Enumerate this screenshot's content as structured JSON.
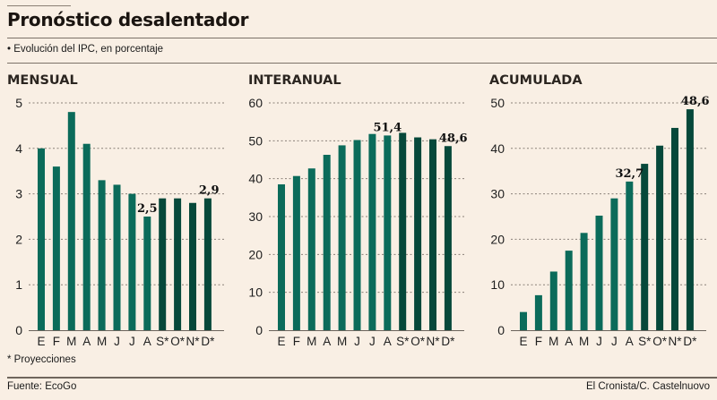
{
  "header": {
    "title": "Pronóstico desalentador",
    "subtitle": "• Evolución del IPC, en porcentaje"
  },
  "footer": {
    "footnote": "* Proyecciones",
    "source": "Fuente: EcoGo",
    "credit": "El Cronista/C. Castelnuovo"
  },
  "colors": {
    "actual": "#0b6b5a",
    "projected": "#06483a",
    "background": "#f9efe4"
  },
  "chart_data": [
    {
      "type": "bar",
      "title": "MENSUAL",
      "categories": [
        "E",
        "F",
        "M",
        "A",
        "M",
        "J",
        "J",
        "A",
        "S*",
        "O*",
        "N*",
        "D*"
      ],
      "projected": [
        false,
        false,
        false,
        false,
        false,
        false,
        false,
        false,
        true,
        true,
        true,
        true
      ],
      "values": [
        4.0,
        3.6,
        4.8,
        4.1,
        3.3,
        3.2,
        3.0,
        2.5,
        2.9,
        2.9,
        2.8,
        2.9
      ],
      "ylim": [
        0,
        5
      ],
      "yticks": [
        0,
        1,
        2,
        3,
        4,
        5
      ],
      "ytick_labels": [
        "0",
        "1",
        "2",
        "3",
        "4",
        "5"
      ],
      "grid": true,
      "annotations": [
        {
          "index": 7,
          "text": "2,5"
        },
        {
          "index": 11,
          "text": "2,9"
        }
      ],
      "xlabel": "",
      "ylabel": ""
    },
    {
      "type": "bar",
      "title": "INTERANUAL",
      "categories": [
        "E",
        "F",
        "M",
        "A",
        "M",
        "J",
        "J",
        "A",
        "S*",
        "O*",
        "N*",
        "D*"
      ],
      "projected": [
        false,
        false,
        false,
        false,
        false,
        false,
        false,
        false,
        true,
        true,
        true,
        true
      ],
      "values": [
        38.5,
        40.7,
        42.7,
        46.3,
        48.8,
        50.2,
        51.8,
        51.4,
        52.1,
        50.9,
        50.4,
        48.6
      ],
      "ylim": [
        0,
        60
      ],
      "yticks": [
        0,
        10,
        20,
        30,
        40,
        50,
        60
      ],
      "ytick_labels": [
        "0",
        "10",
        "20",
        "30",
        "40",
        "50",
        "60"
      ],
      "grid": true,
      "annotations": [
        {
          "index": 7,
          "text": "51,4"
        },
        {
          "index": 11,
          "text": "48,6"
        }
      ],
      "xlabel": "",
      "ylabel": ""
    },
    {
      "type": "bar",
      "title": "ACUMULADA",
      "categories": [
        "E",
        "F",
        "M",
        "A",
        "M",
        "J",
        "J",
        "A",
        "S*",
        "O*",
        "N*",
        "D*"
      ],
      "projected": [
        false,
        false,
        false,
        false,
        false,
        false,
        false,
        false,
        true,
        true,
        true,
        true
      ],
      "values": [
        4.0,
        7.7,
        12.9,
        17.5,
        21.4,
        25.2,
        29.0,
        32.7,
        36.6,
        40.6,
        44.5,
        48.6
      ],
      "ylim": [
        0,
        50
      ],
      "yticks": [
        0,
        10,
        20,
        30,
        40,
        50
      ],
      "ytick_labels": [
        "0",
        "10",
        "20",
        "30",
        "40",
        "50"
      ],
      "grid": true,
      "annotations": [
        {
          "index": 7,
          "text": "32,7"
        },
        {
          "index": 11,
          "text": "48,6"
        }
      ],
      "xlabel": "",
      "ylabel": ""
    }
  ]
}
